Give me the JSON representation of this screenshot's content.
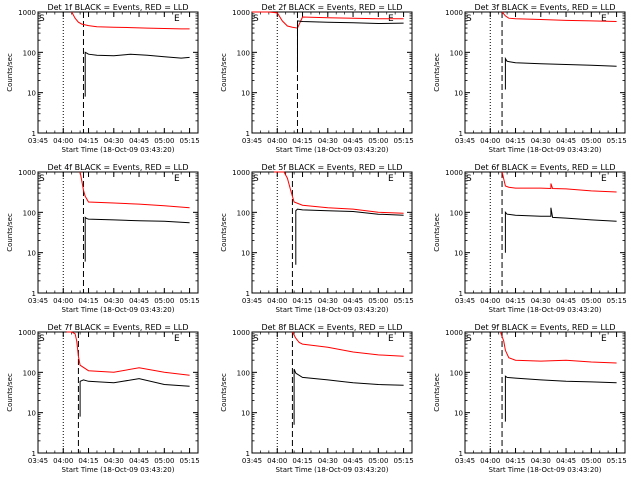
{
  "chart_data": [
    {
      "type": "line",
      "title": "Det 1f BLACK = Events, RED = LLD",
      "corner_labels": {
        "start": "S",
        "end": "E"
      },
      "ylabel": "Counts/sec",
      "xlabel": "Start Time (18-Oct-09 03:43:20)",
      "yscale": "log",
      "ylim": [
        1,
        1000
      ],
      "xlim": [
        "03:45",
        "05:20"
      ],
      "yticks": [
        "1",
        "10",
        "100",
        "1000"
      ],
      "xticks": [
        "03:45",
        "04:00",
        "04:15",
        "04:30",
        "04:45",
        "05:00",
        "05:15"
      ],
      "dotted_lines": [
        "04:00"
      ],
      "dashed_lines": [
        "04:12"
      ],
      "series": [
        {
          "color": "#ff0000",
          "x": [
            "04:05",
            "04:07",
            "04:09",
            "04:11",
            "04:13",
            "04:15",
            "04:20",
            "04:30",
            "04:40",
            "04:50",
            "05:00",
            "05:10",
            "05:15"
          ],
          "y": [
            1000,
            700,
            560,
            500,
            480,
            460,
            430,
            420,
            410,
            400,
            390,
            380,
            380
          ]
        },
        {
          "color": "#000000",
          "x": [
            "04:13",
            "04:13",
            "04:14",
            "04:15",
            "04:20",
            "04:30",
            "04:40",
            "04:50",
            "05:00",
            "05:10",
            "05:15"
          ],
          "y": [
            8,
            100,
            95,
            90,
            85,
            82,
            90,
            85,
            78,
            72,
            75
          ]
        }
      ]
    },
    {
      "type": "line",
      "title": "Det 2f BLACK = Events, RED = LLD",
      "corner_labels": {
        "start": "S",
        "end": "E"
      },
      "ylabel": "Counts/sec",
      "xlabel": "Start Time (18-Oct-09 03:43:20)",
      "yscale": "log",
      "ylim": [
        1,
        1000
      ],
      "xlim": [
        "03:45",
        "05:20"
      ],
      "yticks": [
        "1",
        "10",
        "100",
        "1000"
      ],
      "xticks": [
        "03:45",
        "04:00",
        "04:15",
        "04:30",
        "04:45",
        "05:00",
        "05:15"
      ],
      "dotted_lines": [
        "04:00"
      ],
      "dashed_lines": [
        "04:12"
      ],
      "series": [
        {
          "color": "#ff0000",
          "x": [
            "03:45",
            "03:50",
            "03:55",
            "04:00",
            "04:03",
            "04:06",
            "04:09",
            "04:12",
            "04:15",
            "04:30",
            "04:45",
            "05:00",
            "05:15"
          ],
          "y": [
            1000,
            1000,
            1000,
            950,
            600,
            450,
            420,
            400,
            750,
            720,
            700,
            680,
            680
          ]
        },
        {
          "color": "#000000",
          "x": [
            "04:12",
            "04:12",
            "04:15",
            "04:30",
            "04:45",
            "05:00",
            "05:15"
          ],
          "y": [
            40,
            600,
            580,
            560,
            540,
            520,
            530
          ]
        }
      ]
    },
    {
      "type": "line",
      "title": "Det 3f BLACK = Events, RED = LLD",
      "corner_labels": {
        "start": "S",
        "end": "E"
      },
      "ylabel": "Counts/sec",
      "xlabel": "Start Time (18-Oct-09 03:43:20)",
      "yscale": "log",
      "ylim": [
        1,
        1000
      ],
      "xlim": [
        "03:45",
        "05:20"
      ],
      "yticks": [
        "1",
        "10",
        "100",
        "1000"
      ],
      "xticks": [
        "03:45",
        "04:00",
        "04:15",
        "04:30",
        "04:45",
        "05:00",
        "05:15"
      ],
      "dotted_lines": [
        "04:00"
      ],
      "dashed_lines": [
        "04:07"
      ],
      "series": [
        {
          "color": "#ff0000",
          "x": [
            "04:07",
            "04:09",
            "04:11",
            "04:15",
            "04:30",
            "04:45",
            "05:00",
            "05:15"
          ],
          "y": [
            1000,
            800,
            700,
            680,
            650,
            620,
            600,
            580
          ]
        },
        {
          "color": "#000000",
          "x": [
            "04:09",
            "04:09",
            "04:10",
            "04:15",
            "04:30",
            "04:45",
            "05:00",
            "05:15"
          ],
          "y": [
            12,
            70,
            60,
            55,
            52,
            50,
            48,
            45
          ]
        }
      ]
    },
    {
      "type": "line",
      "title": "Det 4f BLACK = Events, RED = LLD",
      "corner_labels": {
        "start": "S",
        "end": "E"
      },
      "ylabel": "Counts/sec",
      "xlabel": "Start Time (18-Oct-09 03:43:20)",
      "yscale": "log",
      "ylim": [
        1,
        1000
      ],
      "xlim": [
        "03:45",
        "05:20"
      ],
      "yticks": [
        "1",
        "10",
        "100",
        "1000"
      ],
      "xticks": [
        "03:45",
        "04:00",
        "04:15",
        "04:30",
        "04:45",
        "05:00",
        "05:15"
      ],
      "dotted_lines": [
        "04:00"
      ],
      "dashed_lines": [
        "04:12"
      ],
      "series": [
        {
          "color": "#ff0000",
          "x": [
            "04:10",
            "04:11",
            "04:12",
            "04:13",
            "04:15",
            "04:30",
            "04:45",
            "05:00",
            "05:15"
          ],
          "y": [
            1000,
            600,
            350,
            250,
            180,
            170,
            160,
            145,
            130
          ]
        },
        {
          "color": "#000000",
          "x": [
            "04:13",
            "04:13",
            "04:14",
            "04:15",
            "04:30",
            "04:45",
            "05:00",
            "05:15"
          ],
          "y": [
            6,
            75,
            70,
            68,
            65,
            62,
            60,
            55
          ]
        }
      ]
    },
    {
      "type": "line",
      "title": "Det 5f BLACK = Events, RED = LLD",
      "corner_labels": {
        "start": "S",
        "end": "E"
      },
      "ylabel": "Counts/sec",
      "xlabel": "Start Time (18-Oct-09 03:43:20)",
      "yscale": "log",
      "ylim": [
        1,
        1000
      ],
      "xlim": [
        "03:45",
        "05:20"
      ],
      "yticks": [
        "1",
        "10",
        "100",
        "1000"
      ],
      "xticks": [
        "03:45",
        "04:00",
        "04:15",
        "04:30",
        "04:45",
        "05:00",
        "05:15"
      ],
      "dotted_lines": [
        "04:00"
      ],
      "dashed_lines": [
        "04:09"
      ],
      "series": [
        {
          "color": "#ff0000",
          "x": [
            "03:58",
            "04:00",
            "04:04",
            "04:06",
            "04:08",
            "04:10",
            "04:15",
            "04:30",
            "04:45",
            "05:00",
            "05:15"
          ],
          "y": [
            1000,
            1000,
            1000,
            700,
            350,
            180,
            150,
            130,
            120,
            100,
            95
          ]
        },
        {
          "color": "#000000",
          "x": [
            "04:11",
            "04:11",
            "04:12",
            "04:15",
            "04:30",
            "04:45",
            "05:00",
            "05:15"
          ],
          "y": [
            5,
            110,
            120,
            115,
            110,
            105,
            90,
            85
          ]
        }
      ]
    },
    {
      "type": "line",
      "title": "Det 6f BLACK = Events, RED = LLD",
      "corner_labels": {
        "start": "S",
        "end": "E"
      },
      "ylabel": "Counts/sec",
      "xlabel": "Start Time (18-Oct-09 03:43:20)",
      "yscale": "log",
      "ylim": [
        1,
        1000
      ],
      "xlim": [
        "03:45",
        "05:20"
      ],
      "yticks": [
        "1",
        "10",
        "100",
        "1000"
      ],
      "xticks": [
        "03:45",
        "04:00",
        "04:15",
        "04:30",
        "04:45",
        "05:00",
        "05:15"
      ],
      "dotted_lines": [
        "04:00"
      ],
      "dashed_lines": [
        "04:07"
      ],
      "series": [
        {
          "color": "#ff0000",
          "x": [
            "04:07",
            "04:09",
            "04:11",
            "04:15",
            "04:30",
            "04:36",
            "04:36",
            "04:37",
            "04:45",
            "05:00",
            "05:15"
          ],
          "y": [
            1000,
            450,
            420,
            400,
            400,
            390,
            520,
            390,
            380,
            340,
            320
          ]
        },
        {
          "color": "#000000",
          "x": [
            "04:09",
            "04:09",
            "04:10",
            "04:15",
            "04:30",
            "04:36",
            "04:36",
            "04:37",
            "04:45",
            "05:00",
            "05:15"
          ],
          "y": [
            10,
            100,
            90,
            85,
            80,
            80,
            130,
            75,
            72,
            65,
            60
          ]
        }
      ]
    },
    {
      "type": "line",
      "title": "Det 7f BLACK = Events, RED = LLD",
      "corner_labels": {
        "start": "S",
        "end": "E"
      },
      "ylabel": "Counts/sec",
      "xlabel": "Start Time (18-Oct-09 03:43:20)",
      "yscale": "log",
      "ylim": [
        1,
        1000
      ],
      "xlim": [
        "03:45",
        "05:20"
      ],
      "yticks": [
        "1",
        "10",
        "100",
        "1000"
      ],
      "xticks": [
        "03:45",
        "04:00",
        "04:15",
        "04:30",
        "04:45",
        "05:00",
        "05:15"
      ],
      "dotted_lines": [
        "04:00"
      ],
      "dashed_lines": [
        "04:09"
      ],
      "series": [
        {
          "color": "#ff0000",
          "x": [
            "04:02",
            "04:05",
            "04:07",
            "04:08",
            "04:09",
            "04:10",
            "04:15",
            "04:30",
            "04:45",
            "05:00",
            "05:15"
          ],
          "y": [
            1000,
            1000,
            900,
            600,
            250,
            150,
            110,
            100,
            130,
            100,
            85
          ]
        },
        {
          "color": "#000000",
          "x": [
            "04:10",
            "04:10",
            "04:12",
            "04:15",
            "04:30",
            "04:45",
            "05:00",
            "05:15"
          ],
          "y": [
            8,
            60,
            65,
            60,
            55,
            70,
            50,
            45
          ]
        }
      ]
    },
    {
      "type": "line",
      "title": "Det 8f BLACK = Events, RED = LLD",
      "corner_labels": {
        "start": "S",
        "end": "E"
      },
      "ylabel": "Counts/sec",
      "xlabel": "Start Time (18-Oct-09 03:43:20)",
      "yscale": "log",
      "ylim": [
        1,
        1000
      ],
      "xlim": [
        "03:45",
        "05:20"
      ],
      "yticks": [
        "1",
        "10",
        "100",
        "1000"
      ],
      "xticks": [
        "03:45",
        "04:00",
        "04:15",
        "04:30",
        "04:45",
        "05:00",
        "05:15"
      ],
      "dotted_lines": [
        "04:00"
      ],
      "dashed_lines": [
        "04:09"
      ],
      "series": [
        {
          "color": "#ff0000",
          "x": [
            "04:09",
            "04:11",
            "04:13",
            "04:15",
            "04:30",
            "04:45",
            "05:00",
            "05:15"
          ],
          "y": [
            1000,
            700,
            550,
            500,
            420,
            320,
            270,
            250
          ]
        },
        {
          "color": "#000000",
          "x": [
            "04:10",
            "04:10",
            "04:11",
            "04:15",
            "04:30",
            "04:45",
            "05:00",
            "05:15"
          ],
          "y": [
            5,
            120,
            95,
            75,
            65,
            55,
            50,
            48
          ]
        }
      ]
    },
    {
      "type": "line",
      "title": "Det 9f BLACK = Events, RED = LLD",
      "corner_labels": {
        "start": "S",
        "end": "E"
      },
      "ylabel": "Counts/sec",
      "xlabel": "Start Time (18-Oct-09 03:43:20)",
      "yscale": "log",
      "ylim": [
        1,
        1000
      ],
      "xlim": [
        "03:45",
        "05:20"
      ],
      "yticks": [
        "1",
        "10",
        "100",
        "1000"
      ],
      "xticks": [
        "03:45",
        "04:00",
        "04:15",
        "04:30",
        "04:45",
        "05:00",
        "05:15"
      ],
      "dotted_lines": [
        "04:00"
      ],
      "dashed_lines": [
        "04:07"
      ],
      "series": [
        {
          "color": "#ff0000",
          "x": [
            "04:06",
            "04:08",
            "04:09",
            "04:11",
            "04:15",
            "04:30",
            "04:45",
            "05:00",
            "05:15"
          ],
          "y": [
            1000,
            600,
            350,
            230,
            200,
            190,
            200,
            180,
            170
          ]
        },
        {
          "color": "#000000",
          "x": [
            "04:09",
            "04:09",
            "04:10",
            "04:15",
            "04:30",
            "04:45",
            "05:00",
            "05:15"
          ],
          "y": [
            6,
            80,
            75,
            72,
            65,
            60,
            58,
            55
          ]
        }
      ]
    }
  ]
}
